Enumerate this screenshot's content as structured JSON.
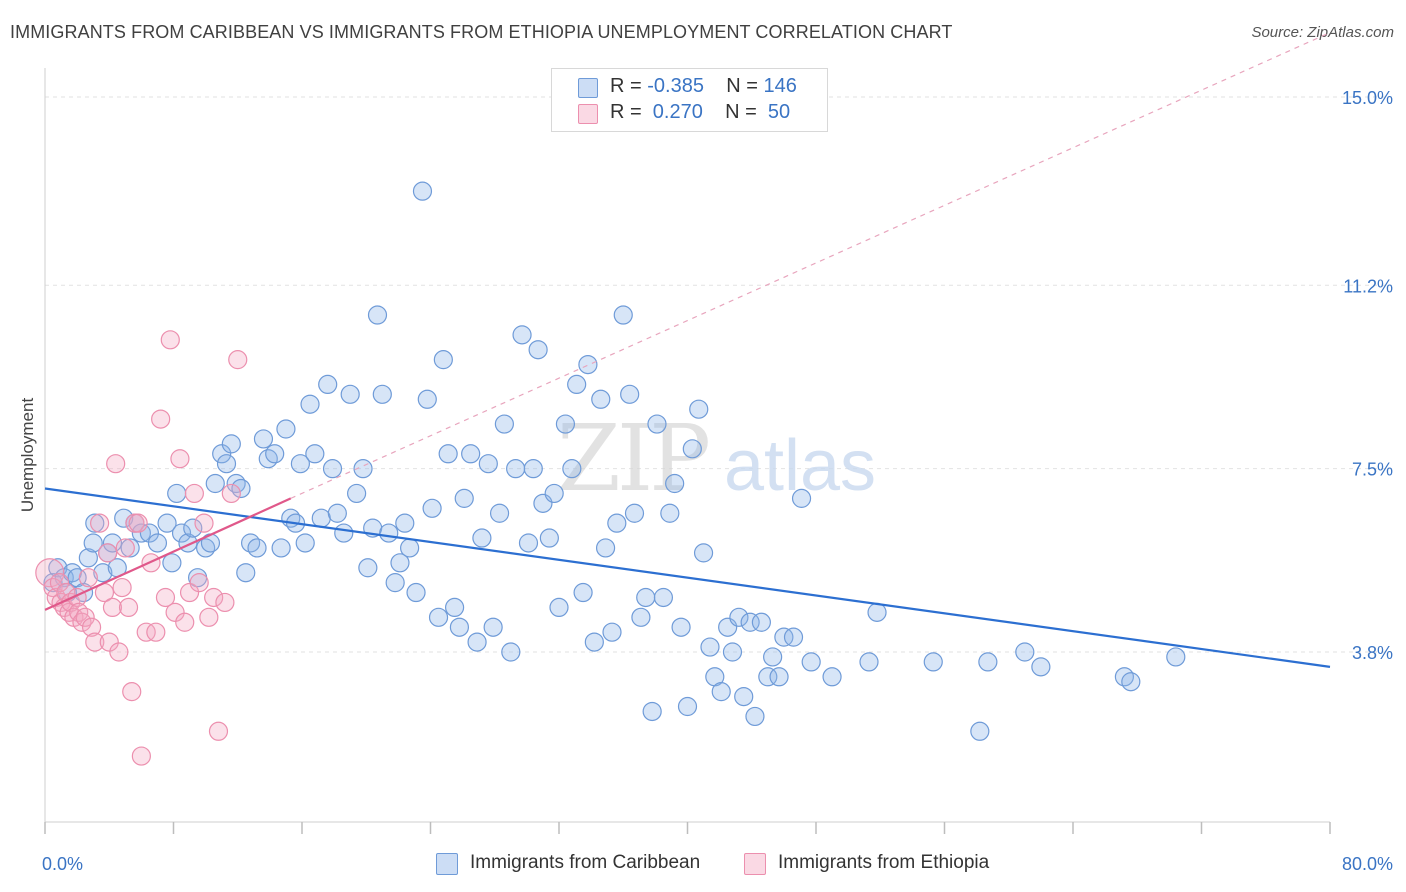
{
  "title": "IMMIGRANTS FROM CARIBBEAN VS IMMIGRANTS FROM ETHIOPIA UNEMPLOYMENT CORRELATION CHART",
  "source": "Source: ZipAtlas.com",
  "watermark": {
    "zip": "ZIP",
    "atlas": "atlas"
  },
  "legend": {
    "rows": [
      {
        "r_label": "R =",
        "r_value": "-0.385",
        "n_label": "N =",
        "n_value": "146",
        "color": "#8fb4e6"
      },
      {
        "r_label": "R =",
        "r_value": " 0.270",
        "n_label": "N =",
        "n_value": " 50",
        "color": "#f0a3bd"
      }
    ]
  },
  "bottom_legend": {
    "series1": "Immigrants from Caribbean",
    "series2": "Immigrants from Ethiopia"
  },
  "colors": {
    "blue_fill": "rgba(141,180,232,0.35)",
    "blue_stroke": "#6f9bd8",
    "blue_line": "#2c6fd1",
    "pink_fill": "rgba(244,170,195,0.35)",
    "pink_stroke": "#ec8fae",
    "pink_line": "#e0588a",
    "grid": "#e2e2e2",
    "tick_label": "#3a74c4"
  },
  "chart_data": {
    "type": "scatter",
    "title": "IMMIGRANTS FROM CARIBBEAN VS IMMIGRANTS FROM ETHIOPIA UNEMPLOYMENT CORRELATION CHART",
    "xlabel": "",
    "ylabel": "Unemployment",
    "xlim": [
      0,
      80
    ],
    "ylim": [
      0,
      15.5
    ],
    "x_tick_labels": [
      "0.0%",
      "80.0%"
    ],
    "y_ticks": [
      3.8,
      7.5,
      11.2,
      15.0
    ],
    "y_tick_labels": [
      "3.8%",
      "7.5%",
      "11.2%",
      "15.0%"
    ],
    "series": [
      {
        "name": "Immigrants from Caribbean",
        "R": -0.385,
        "N": 146,
        "trend": {
          "x": [
            0,
            80
          ],
          "y": [
            7.1,
            3.5
          ],
          "style": "solid"
        },
        "points": [
          [
            0.5,
            5.2
          ],
          [
            0.8,
            5.5
          ],
          [
            1.2,
            5.3
          ],
          [
            1.4,
            5.0
          ],
          [
            1.7,
            5.4
          ],
          [
            2.0,
            5.3
          ],
          [
            2.4,
            5.0
          ],
          [
            2.7,
            5.7
          ],
          [
            3.0,
            6.0
          ],
          [
            3.1,
            6.4
          ],
          [
            3.6,
            5.4
          ],
          [
            3.9,
            5.8
          ],
          [
            4.2,
            6.0
          ],
          [
            4.5,
            5.5
          ],
          [
            4.9,
            6.5
          ],
          [
            5.3,
            5.9
          ],
          [
            5.6,
            6.4
          ],
          [
            6.0,
            6.2
          ],
          [
            6.5,
            6.2
          ],
          [
            7.0,
            6.0
          ],
          [
            7.6,
            6.4
          ],
          [
            7.9,
            5.6
          ],
          [
            8.2,
            7.0
          ],
          [
            8.5,
            6.2
          ],
          [
            8.9,
            6.0
          ],
          [
            9.2,
            6.3
          ],
          [
            9.5,
            5.3
          ],
          [
            10.0,
            5.9
          ],
          [
            10.3,
            6.0
          ],
          [
            10.6,
            7.2
          ],
          [
            11.0,
            7.8
          ],
          [
            11.3,
            7.6
          ],
          [
            11.6,
            8.0
          ],
          [
            11.9,
            7.2
          ],
          [
            12.2,
            7.1
          ],
          [
            12.5,
            5.4
          ],
          [
            12.8,
            6.0
          ],
          [
            13.2,
            5.9
          ],
          [
            13.6,
            8.1
          ],
          [
            13.9,
            7.7
          ],
          [
            14.3,
            7.8
          ],
          [
            14.7,
            5.9
          ],
          [
            15.0,
            8.3
          ],
          [
            15.3,
            6.5
          ],
          [
            15.6,
            6.4
          ],
          [
            15.9,
            7.6
          ],
          [
            16.2,
            6.0
          ],
          [
            16.5,
            8.8
          ],
          [
            16.8,
            7.8
          ],
          [
            17.2,
            6.5
          ],
          [
            17.6,
            9.2
          ],
          [
            17.9,
            7.5
          ],
          [
            18.2,
            6.6
          ],
          [
            18.6,
            6.2
          ],
          [
            19.0,
            9.0
          ],
          [
            19.4,
            7.0
          ],
          [
            19.8,
            7.5
          ],
          [
            20.1,
            5.5
          ],
          [
            20.4,
            6.3
          ],
          [
            20.7,
            10.6
          ],
          [
            21.0,
            9.0
          ],
          [
            21.4,
            6.2
          ],
          [
            21.8,
            5.2
          ],
          [
            22.1,
            5.6
          ],
          [
            22.4,
            6.4
          ],
          [
            22.7,
            5.9
          ],
          [
            23.1,
            5.0
          ],
          [
            23.5,
            13.1
          ],
          [
            23.8,
            8.9
          ],
          [
            24.1,
            6.7
          ],
          [
            24.5,
            4.5
          ],
          [
            24.8,
            9.7
          ],
          [
            25.1,
            7.8
          ],
          [
            25.5,
            4.7
          ],
          [
            25.8,
            4.3
          ],
          [
            26.1,
            6.9
          ],
          [
            26.5,
            7.8
          ],
          [
            26.9,
            4.0
          ],
          [
            27.2,
            6.1
          ],
          [
            27.6,
            7.6
          ],
          [
            27.9,
            4.3
          ],
          [
            28.3,
            6.6
          ],
          [
            28.6,
            8.4
          ],
          [
            29.0,
            3.8
          ],
          [
            29.3,
            7.5
          ],
          [
            29.7,
            10.2
          ],
          [
            30.1,
            6.0
          ],
          [
            30.4,
            7.5
          ],
          [
            30.7,
            9.9
          ],
          [
            31.0,
            6.8
          ],
          [
            31.4,
            6.1
          ],
          [
            31.7,
            7.0
          ],
          [
            32.0,
            4.7
          ],
          [
            32.4,
            8.4
          ],
          [
            32.8,
            7.5
          ],
          [
            33.1,
            9.2
          ],
          [
            33.5,
            5.0
          ],
          [
            33.8,
            9.6
          ],
          [
            34.2,
            4.0
          ],
          [
            34.6,
            8.9
          ],
          [
            34.9,
            5.9
          ],
          [
            35.3,
            4.2
          ],
          [
            35.6,
            6.4
          ],
          [
            36.0,
            10.6
          ],
          [
            36.4,
            9.0
          ],
          [
            36.7,
            6.6
          ],
          [
            37.1,
            4.5
          ],
          [
            37.4,
            4.9
          ],
          [
            37.8,
            2.6
          ],
          [
            38.1,
            8.4
          ],
          [
            38.5,
            4.9
          ],
          [
            38.9,
            6.6
          ],
          [
            39.2,
            7.2
          ],
          [
            39.6,
            4.3
          ],
          [
            40.0,
            2.7
          ],
          [
            40.3,
            7.9
          ],
          [
            40.7,
            8.7
          ],
          [
            41.0,
            5.8
          ],
          [
            41.4,
            3.9
          ],
          [
            41.7,
            3.3
          ],
          [
            42.1,
            3.0
          ],
          [
            42.5,
            4.3
          ],
          [
            42.8,
            3.8
          ],
          [
            43.2,
            4.5
          ],
          [
            43.5,
            2.9
          ],
          [
            43.9,
            4.4
          ],
          [
            44.2,
            2.5
          ],
          [
            44.6,
            4.4
          ],
          [
            45.0,
            3.3
          ],
          [
            45.3,
            3.7
          ],
          [
            45.7,
            3.3
          ],
          [
            46.0,
            4.1
          ],
          [
            46.6,
            4.1
          ],
          [
            47.1,
            6.9
          ],
          [
            47.7,
            3.6
          ],
          [
            49.0,
            3.3
          ],
          [
            51.3,
            3.6
          ],
          [
            51.8,
            4.6
          ],
          [
            55.3,
            3.6
          ],
          [
            58.7,
            3.6
          ],
          [
            61.0,
            3.8
          ],
          [
            62.0,
            3.5
          ],
          [
            67.2,
            3.3
          ],
          [
            67.6,
            3.2
          ],
          [
            70.4,
            3.7
          ],
          [
            58.2,
            2.2
          ]
        ]
      },
      {
        "name": "Immigrants from Ethiopia",
        "R": 0.27,
        "N": 50,
        "trend": {
          "x": [
            0,
            15.3
          ],
          "y": [
            4.65,
            6.9
          ],
          "style": "solid",
          "dashed_extension": {
            "x": [
              15.3,
              80
            ],
            "y": [
              6.9,
              16.3
            ]
          }
        },
        "points": [
          [
            0.3,
            5.4
          ],
          [
            0.5,
            5.1
          ],
          [
            0.7,
            4.9
          ],
          [
            0.9,
            5.2
          ],
          [
            1.0,
            4.8
          ],
          [
            1.2,
            4.7
          ],
          [
            1.3,
            5.0
          ],
          [
            1.5,
            4.6
          ],
          [
            1.6,
            4.8
          ],
          [
            1.8,
            4.5
          ],
          [
            2.0,
            4.9
          ],
          [
            2.1,
            4.6
          ],
          [
            2.3,
            4.4
          ],
          [
            2.5,
            4.5
          ],
          [
            2.7,
            5.3
          ],
          [
            2.9,
            4.3
          ],
          [
            3.1,
            4.0
          ],
          [
            3.4,
            6.4
          ],
          [
            3.7,
            5.0
          ],
          [
            3.9,
            5.8
          ],
          [
            4.0,
            4.0
          ],
          [
            4.2,
            4.7
          ],
          [
            4.4,
            7.6
          ],
          [
            4.6,
            3.8
          ],
          [
            4.8,
            5.1
          ],
          [
            5.0,
            5.9
          ],
          [
            5.2,
            4.7
          ],
          [
            5.4,
            3.0
          ],
          [
            5.6,
            6.4
          ],
          [
            5.8,
            6.4
          ],
          [
            6.0,
            1.7
          ],
          [
            6.3,
            4.2
          ],
          [
            6.6,
            5.6
          ],
          [
            6.9,
            4.2
          ],
          [
            7.2,
            8.5
          ],
          [
            7.5,
            4.9
          ],
          [
            7.8,
            10.1
          ],
          [
            8.1,
            4.6
          ],
          [
            8.4,
            7.7
          ],
          [
            8.7,
            4.4
          ],
          [
            9.0,
            5.0
          ],
          [
            9.3,
            7.0
          ],
          [
            9.6,
            5.2
          ],
          [
            9.9,
            6.4
          ],
          [
            10.2,
            4.5
          ],
          [
            10.5,
            4.9
          ],
          [
            10.8,
            2.2
          ],
          [
            11.2,
            4.8
          ],
          [
            12.0,
            9.7
          ],
          [
            11.6,
            7.0
          ]
        ]
      }
    ]
  }
}
